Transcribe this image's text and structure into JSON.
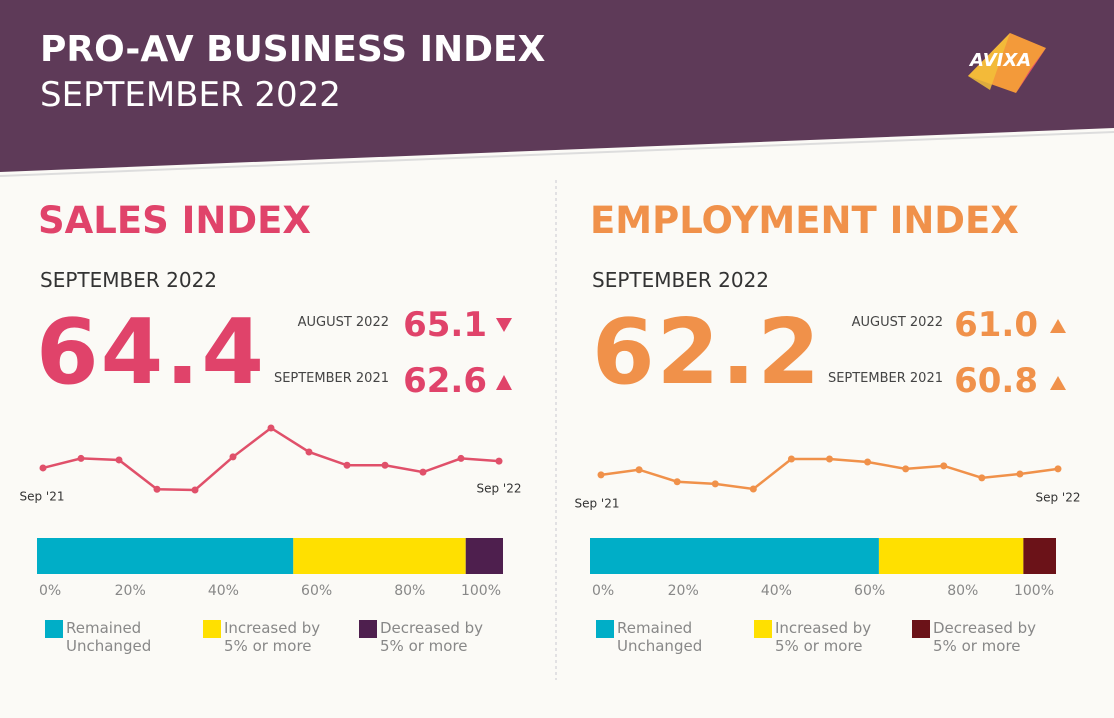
{
  "header": {
    "title": "PRO-AV BUSINESS INDEX",
    "subtitle": "SEPTEMBER 2022",
    "logo": "AVIXA"
  },
  "panels": [
    {
      "title": "SALES INDEX",
      "period": "SEPTEMBER 2022",
      "value": "64.4",
      "comparisons": [
        {
          "label": "AUGUST 2022",
          "value": "65.1"
        },
        {
          "label": "SEPTEMBER 2021",
          "value": "62.6"
        }
      ]
    },
    {
      "title": "EMPLOYMENT INDEX",
      "period": "SEPTEMBER 2022",
      "value": "62.2",
      "comparisons": [
        {
          "label": "AUGUST 2022",
          "value": "61.0"
        },
        {
          "label": "SEPTEMBER 2021",
          "value": "60.8"
        }
      ]
    }
  ],
  "chart_data": [
    {
      "type": "line",
      "color": "#e0506a",
      "categories": [
        "Sep '21",
        null,
        null,
        null,
        null,
        null,
        null,
        null,
        null,
        null,
        null,
        null,
        "Sep '22"
      ],
      "values": [
        62.6,
        65.1,
        64.7,
        57.0,
        56.8,
        65.5,
        73.1,
        66.8,
        63.3,
        63.3,
        61.5,
        65.1,
        64.4
      ]
    },
    {
      "type": "stacked-bar",
      "xlim": [
        0,
        100
      ],
      "xticks": [
        {
          "value": 0,
          "label": "0%"
        },
        {
          "value": 20,
          "label": "20%"
        },
        {
          "value": 40,
          "label": "40%"
        },
        {
          "value": 60,
          "label": "60%"
        },
        {
          "value": 80,
          "label": "80%"
        },
        {
          "value": 100,
          "label": "100%"
        }
      ],
      "series": [
        {
          "name": "Remained Unchanged",
          "color": "#00aec7",
          "values": [
            55
          ]
        },
        {
          "name": "Increased by 5% or more",
          "color": "#ffe000",
          "values": [
            37
          ]
        },
        {
          "name": "Decreased by 5% or more",
          "color": "#4e1f4e",
          "values": [
            8
          ]
        }
      ]
    },
    {
      "type": "line",
      "color": "#f0914a",
      "categories": [
        "Sep '21",
        null,
        null,
        null,
        null,
        null,
        null,
        null,
        null,
        null,
        null,
        null,
        "Sep '22"
      ],
      "values": [
        60.8,
        62.0,
        59.2,
        58.7,
        57.5,
        64.5,
        64.5,
        63.8,
        62.2,
        62.9,
        60.1,
        61.0,
        62.2
      ]
    },
    {
      "type": "stacked-bar",
      "xlim": [
        0,
        100
      ],
      "xticks": [
        {
          "value": 0,
          "label": "0%"
        },
        {
          "value": 20,
          "label": "20%"
        },
        {
          "value": 40,
          "label": "40%"
        },
        {
          "value": 60,
          "label": "60%"
        },
        {
          "value": 80,
          "label": "80%"
        },
        {
          "value": 100,
          "label": "100%"
        }
      ],
      "series": [
        {
          "name": "Remained Unchanged",
          "color": "#00aec7",
          "values": [
            62
          ]
        },
        {
          "name": "Increased by 5% or more",
          "color": "#ffe000",
          "values": [
            31
          ]
        },
        {
          "name": "Decreased by 5% or more",
          "color": "#6b1218",
          "values": [
            7
          ]
        }
      ]
    }
  ]
}
